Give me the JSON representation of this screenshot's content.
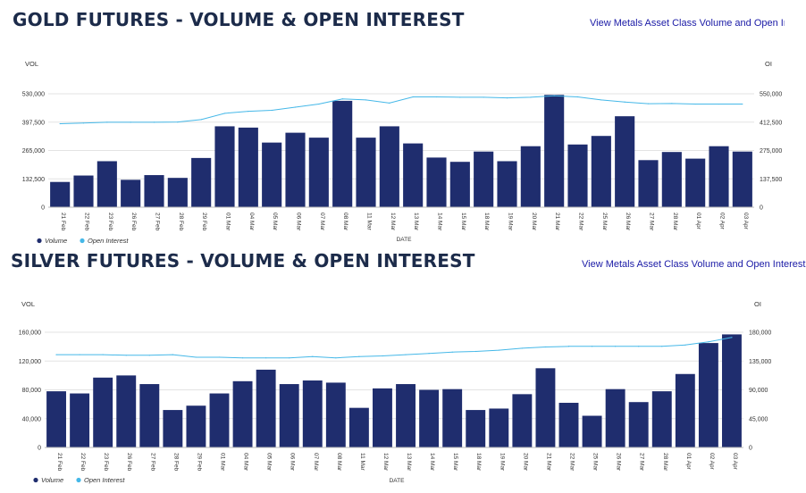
{
  "charts": [
    {
      "title": "GOLD FUTURES - VOLUME & OPEN INTEREST",
      "link": "View Metals Asset Class Volume and Open Interest",
      "chart_data": {
        "type": "bar",
        "title": "GOLD FUTURES - VOLUME & OPEN INTEREST",
        "xlabel": "DATE",
        "ylabel_left": "VOL",
        "ylabel_right": "OI",
        "categories": [
          "21 Feb",
          "22 Feb",
          "23 Feb",
          "26 Feb",
          "27 Feb",
          "28 Feb",
          "29 Feb",
          "01 Mar",
          "04 Mar",
          "05 Mar",
          "06 Mar",
          "07 Mar",
          "08 Mar",
          "11 Mar",
          "12 Mar",
          "13 Mar",
          "14 Mar",
          "15 Mar",
          "18 Mar",
          "19 Mar",
          "20 Mar",
          "21 Mar",
          "22 Mar",
          "25 Mar",
          "26 Mar",
          "27 Mar",
          "28 Mar",
          "01 Apr",
          "02 Apr",
          "03 Apr"
        ],
        "y_ticks": [
          0,
          132500,
          265000,
          397500,
          530000
        ],
        "y_tick_labels": [
          "0",
          "132,500",
          "265,000",
          "397,500",
          "530,000"
        ],
        "ylim": [
          0,
          530000
        ],
        "y2_ticks": [
          0,
          137500,
          275000,
          412500,
          550000
        ],
        "y2_tick_labels": [
          "0",
          "137,500",
          "275,000",
          "412,500",
          "550,000"
        ],
        "y2lim": [
          0,
          550000
        ],
        "grid": true,
        "legend_position": "bottom-left",
        "series": [
          {
            "name": "Volume",
            "type": "bar",
            "axis": "left",
            "color": "#1f2d6e",
            "values": [
              118000,
              148000,
              215000,
              128000,
              150000,
              137000,
              230000,
              378000,
              372000,
              302000,
              348000,
              325000,
              497000,
              325000,
              378000,
              298000,
              232000,
              212000,
              260000,
              215000,
              285000,
              525000,
              293000,
              333000,
              425000,
              220000,
              258000,
              227000,
              285000,
              260000
            ]
          },
          {
            "name": "Open Interest",
            "type": "line",
            "axis": "right",
            "color": "#45b8e8",
            "values": [
              405000,
              408000,
              412000,
              412000,
              412000,
              413000,
              425000,
              455000,
              465000,
              470000,
              485000,
              500000,
              525000,
              520000,
              505000,
              535000,
              535000,
              533000,
              533000,
              530000,
              533000,
              540000,
              535000,
              520000,
              510000,
              502000,
              503000,
              500000,
              500000,
              500000
            ]
          }
        ]
      }
    },
    {
      "title": "SILVER FUTURES - VOLUME & OPEN INTEREST",
      "link": "View Metals Asset Class Volume and Open Interest",
      "chart_data": {
        "type": "bar",
        "title": "SILVER FUTURES - VOLUME & OPEN INTEREST",
        "xlabel": "DATE",
        "ylabel_left": "VOL",
        "ylabel_right": "OI",
        "categories": [
          "21 Feb",
          "22 Feb",
          "23 Feb",
          "26 Feb",
          "27 Feb",
          "28 Feb",
          "29 Feb",
          "01 Mar",
          "04 Mar",
          "05 Mar",
          "06 Mar",
          "07 Mar",
          "08 Mar",
          "11 Mar",
          "12 Mar",
          "13 Mar",
          "14 Mar",
          "15 Mar",
          "18 Mar",
          "19 Mar",
          "20 Mar",
          "21 Mar",
          "22 Mar",
          "25 Mar",
          "26 Mar",
          "27 Mar",
          "28 Mar",
          "01 Apr",
          "02 Apr",
          "03 Apr"
        ],
        "y_ticks": [
          0,
          40000,
          80000,
          120000,
          160000
        ],
        "y_tick_labels": [
          "0",
          "40,000",
          "80,000",
          "120,000",
          "160,000"
        ],
        "ylim": [
          0,
          160000
        ],
        "y2_ticks": [
          0,
          45000,
          90000,
          135000,
          180000
        ],
        "y2_tick_labels": [
          "0",
          "45,000",
          "90,000",
          "135,000",
          "180,000"
        ],
        "y2lim": [
          0,
          180000
        ],
        "grid": true,
        "legend_position": "bottom-left",
        "series": [
          {
            "name": "Volume",
            "type": "bar",
            "axis": "left",
            "color": "#1f2d6e",
            "values": [
              78000,
              75000,
              97000,
              100000,
              88000,
              52000,
              58000,
              75000,
              92000,
              108000,
              88000,
              93000,
              90000,
              55000,
              82000,
              88000,
              80000,
              81000,
              52000,
              54000,
              74000,
              110000,
              62000,
              44000,
              81000,
              63000,
              78000,
              102000,
              145000,
              157000
            ]
          },
          {
            "name": "Open Interest",
            "type": "line",
            "axis": "right",
            "color": "#45b8e8",
            "values": [
              145000,
              145000,
              145000,
              144000,
              144000,
              145000,
              141000,
              141000,
              140000,
              140000,
              140000,
              142000,
              140000,
              142000,
              143000,
              145000,
              147000,
              149000,
              150000,
              152000,
              155000,
              157000,
              158000,
              158000,
              158000,
              158000,
              158000,
              160000,
              165000,
              172000
            ]
          }
        ]
      }
    }
  ]
}
